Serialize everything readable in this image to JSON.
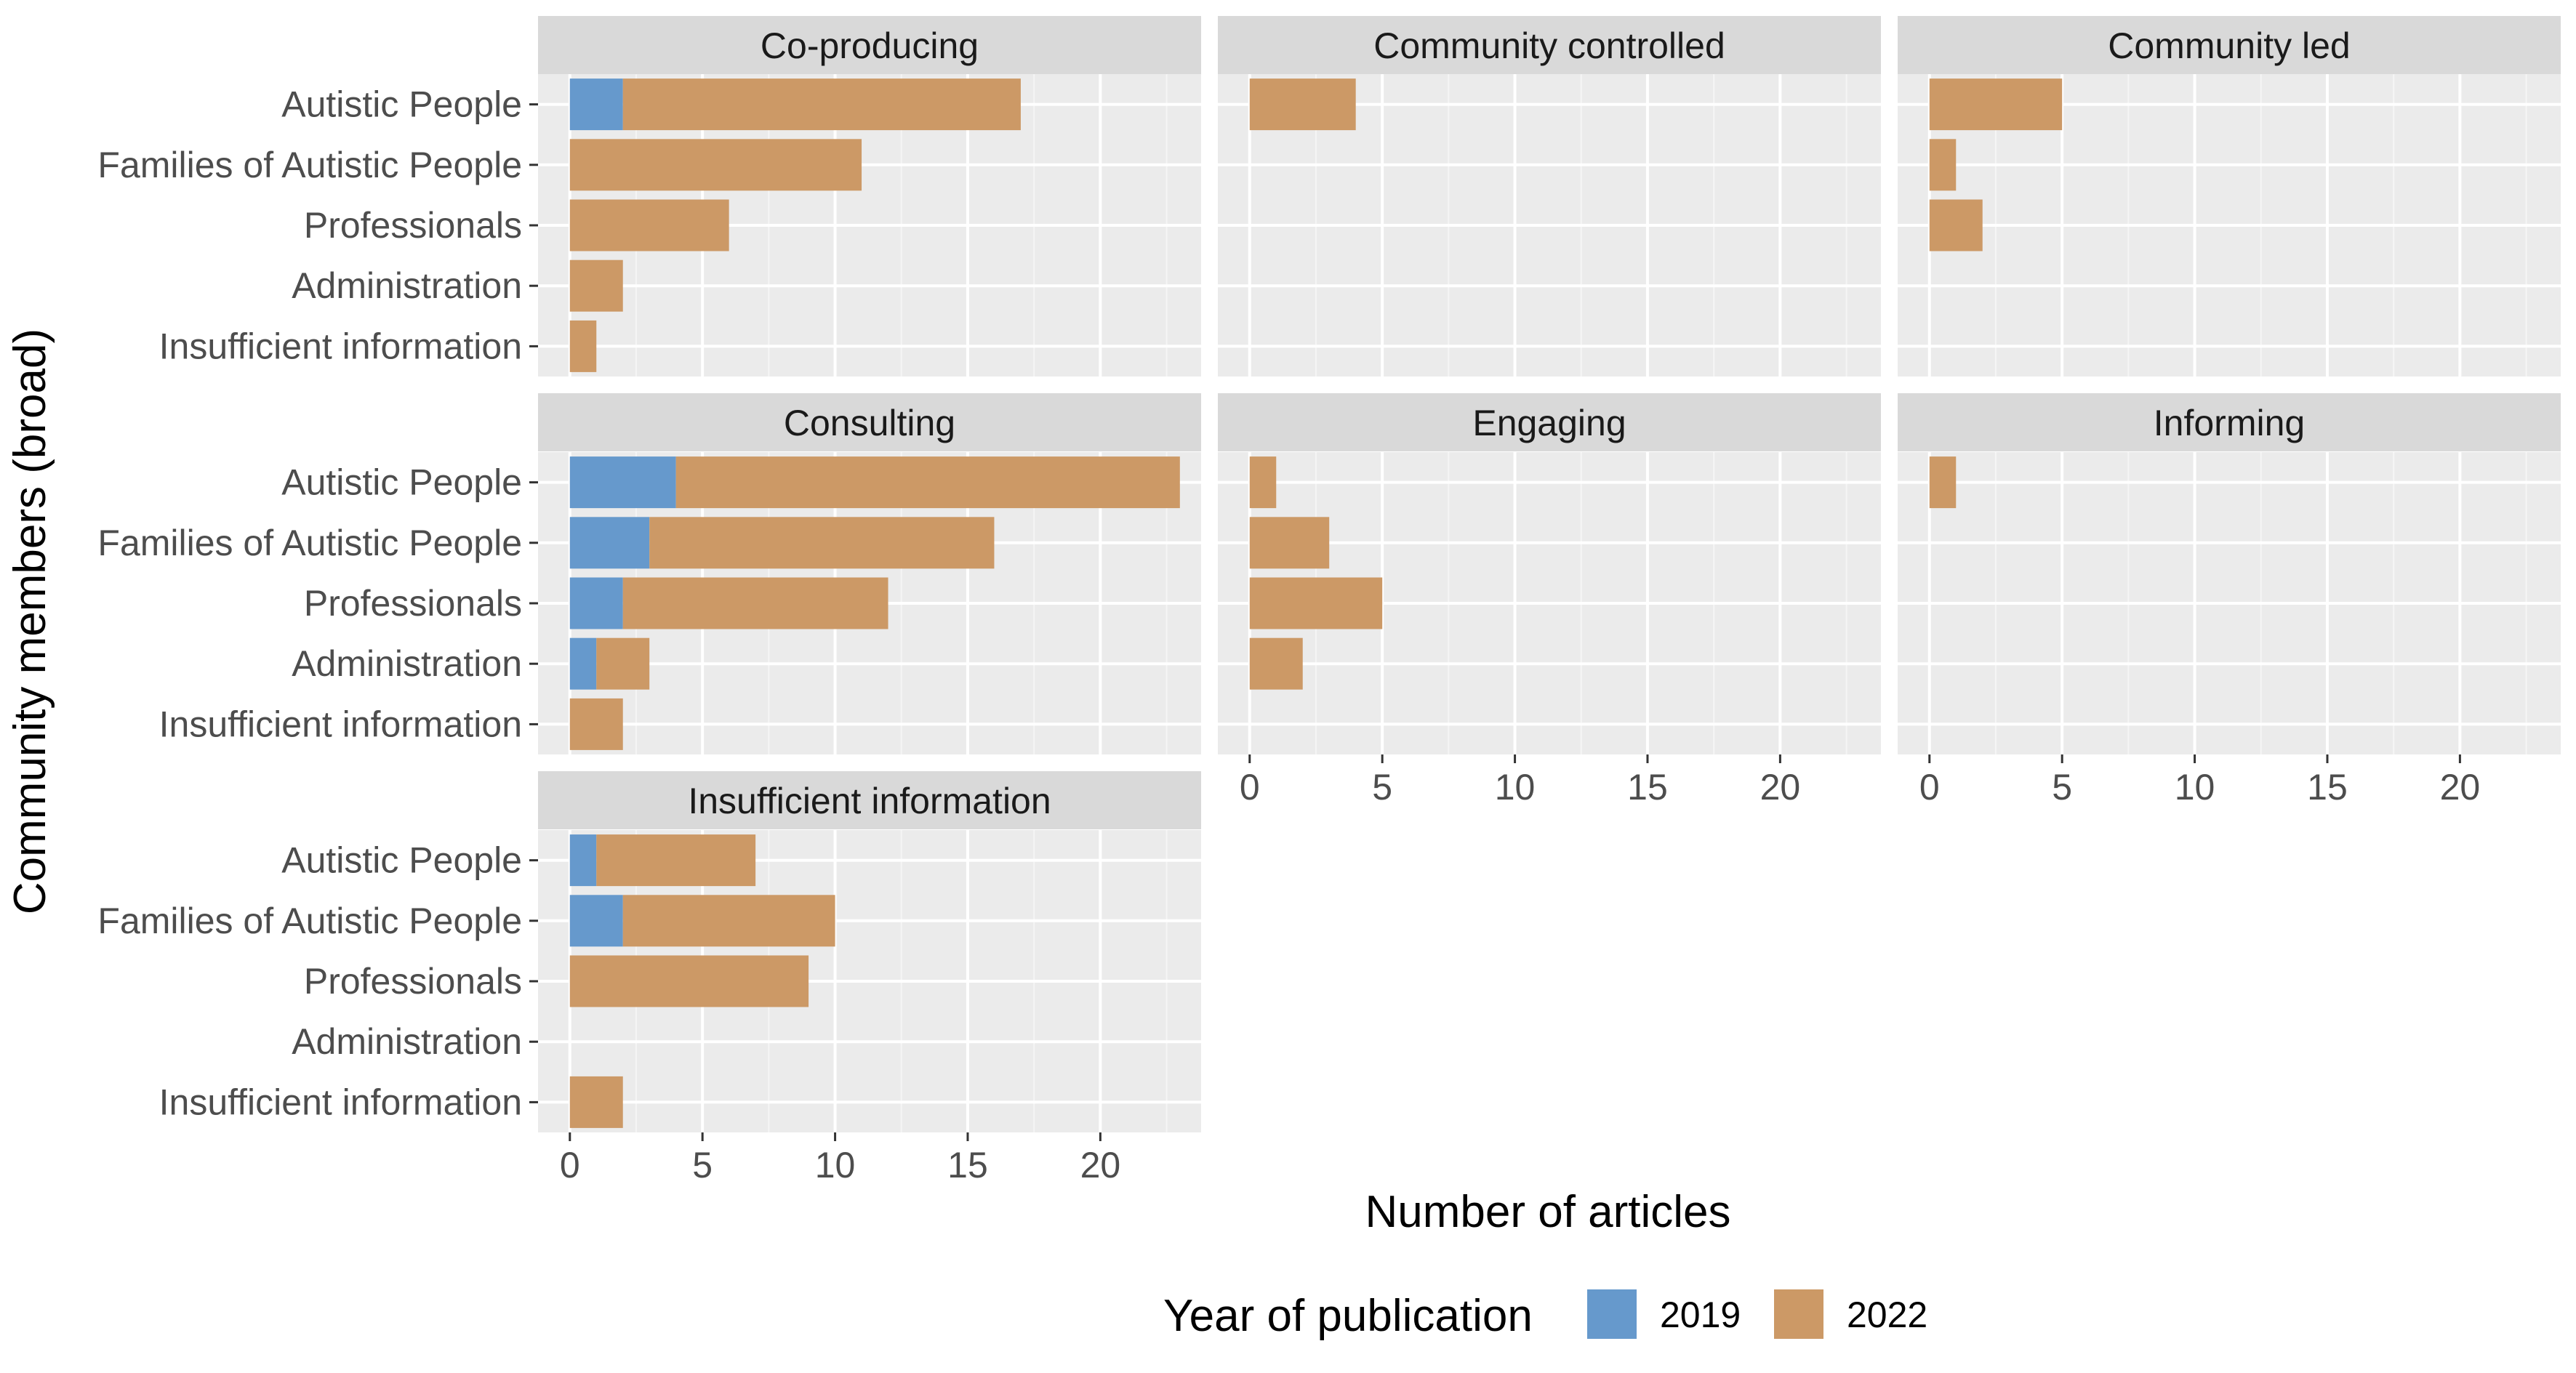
{
  "chart_data": {
    "type": "bar",
    "orientation": "horizontal",
    "stacked": true,
    "xlabel": "Number of articles",
    "ylabel": "Community members (broad)",
    "xlim": [
      -1.2,
      23.8
    ],
    "xticks": [
      0,
      5,
      10,
      15,
      20
    ],
    "grid": true,
    "legend": {
      "title": "Year of publication",
      "placement": "bottom",
      "entries": [
        {
          "name": "2019",
          "color": "#6699cc"
        },
        {
          "name": "2022",
          "color": "#cc9966"
        }
      ]
    },
    "categories": [
      "Autistic People",
      "Families of Autistic People",
      "Professionals",
      "Administration",
      "Insufficient information"
    ],
    "panels": [
      {
        "title": "Co-producing",
        "series": [
          {
            "name": "2019",
            "values": [
              2,
              0,
              0,
              0,
              0
            ]
          },
          {
            "name": "2022",
            "values": [
              15,
              11,
              6,
              2,
              1
            ]
          }
        ]
      },
      {
        "title": "Community controlled",
        "series": [
          {
            "name": "2019",
            "values": [
              0,
              0,
              0,
              0,
              0
            ]
          },
          {
            "name": "2022",
            "values": [
              4,
              0,
              0,
              0,
              0
            ]
          }
        ]
      },
      {
        "title": "Community led",
        "series": [
          {
            "name": "2019",
            "values": [
              0,
              0,
              0,
              0,
              0
            ]
          },
          {
            "name": "2022",
            "values": [
              5,
              1,
              2,
              0,
              0
            ]
          }
        ]
      },
      {
        "title": "Consulting",
        "series": [
          {
            "name": "2019",
            "values": [
              4,
              3,
              2,
              1,
              0
            ]
          },
          {
            "name": "2022",
            "values": [
              19,
              13,
              10,
              2,
              2
            ]
          }
        ]
      },
      {
        "title": "Engaging",
        "series": [
          {
            "name": "2019",
            "values": [
              0,
              0,
              0,
              0,
              0
            ]
          },
          {
            "name": "2022",
            "values": [
              1,
              3,
              5,
              2,
              0
            ]
          }
        ]
      },
      {
        "title": "Informing",
        "series": [
          {
            "name": "2019",
            "values": [
              0,
              0,
              0,
              0,
              0
            ]
          },
          {
            "name": "2022",
            "values": [
              1,
              0,
              0,
              0,
              0
            ]
          }
        ]
      },
      {
        "title": "Insufficient information",
        "series": [
          {
            "name": "2019",
            "values": [
              1,
              2,
              0,
              0,
              0
            ]
          },
          {
            "name": "2022",
            "values": [
              6,
              8,
              9,
              0,
              2
            ]
          }
        ]
      }
    ]
  }
}
